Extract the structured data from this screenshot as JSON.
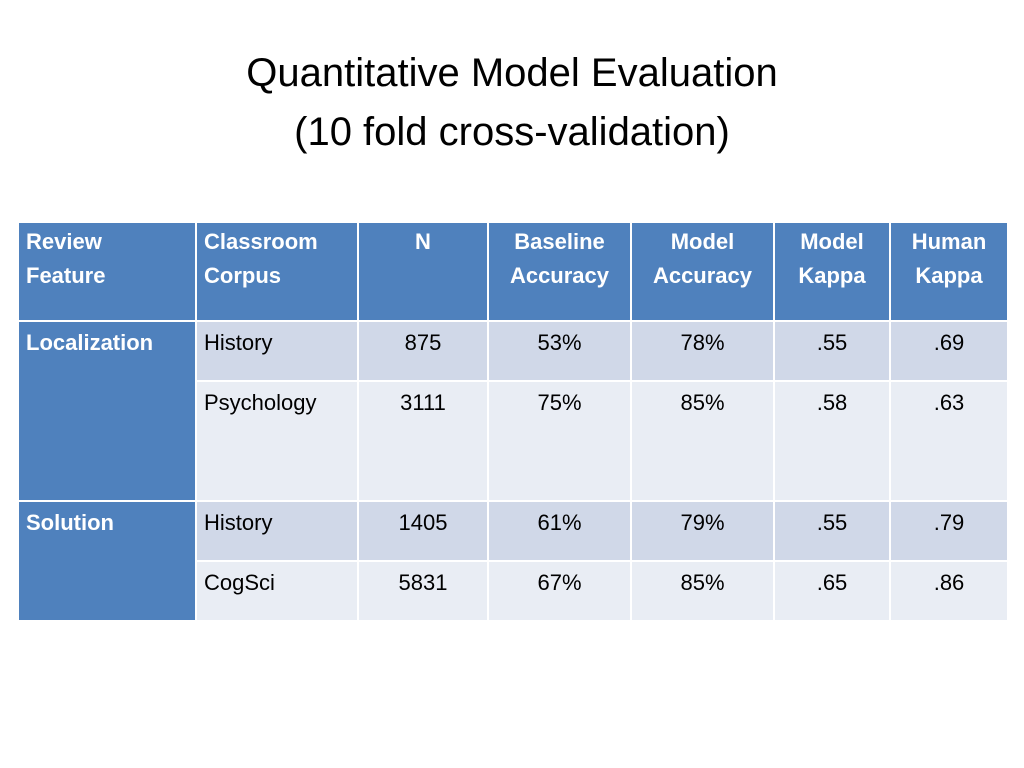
{
  "title": {
    "line1": "Quantitative Model Evaluation",
    "line2": "(10 fold cross-validation)"
  },
  "table": {
    "headers": [
      [
        "Review",
        "Feature"
      ],
      [
        "Classroom",
        "Corpus"
      ],
      [
        "N",
        ""
      ],
      [
        "Baseline",
        "Accuracy"
      ],
      [
        "Model",
        "Accuracy"
      ],
      [
        "Model",
        "Kappa"
      ],
      [
        "Human",
        "Kappa"
      ]
    ],
    "groups": [
      {
        "label": "Localization",
        "rows": [
          {
            "corpus": "History",
            "n": "875",
            "baseline_accuracy": "53%",
            "model_accuracy": "78%",
            "model_kappa": ".55",
            "human_kappa": ".69"
          },
          {
            "corpus": "Psychology",
            "n": "3111",
            "baseline_accuracy": "75%",
            "model_accuracy": "85%",
            "model_kappa": ".58",
            "human_kappa": ".63"
          }
        ]
      },
      {
        "label": "Solution",
        "rows": [
          {
            "corpus": "History",
            "n": "1405",
            "baseline_accuracy": "61%",
            "model_accuracy": "79%",
            "model_kappa": ".55",
            "human_kappa": ".79"
          },
          {
            "corpus": "CogSci",
            "n": "5831",
            "baseline_accuracy": "67%",
            "model_accuracy": "85%",
            "model_kappa": ".65",
            "human_kappa": ".86"
          }
        ]
      }
    ]
  },
  "colors": {
    "header_bg": "#4f81bd",
    "row_band_dark": "#d0d8e8",
    "row_band_light": "#e9edf4",
    "header_text": "#ffffff"
  }
}
